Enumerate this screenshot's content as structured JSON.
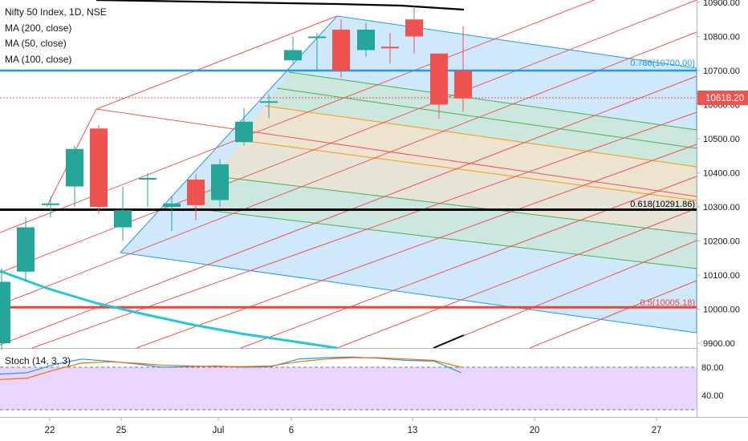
{
  "legend": {
    "symbol": "Nifty 50 Index, 1D, NSE",
    "ma200": "MA (200, close)",
    "ma50": "MA (50, close)",
    "ma100": "MA (100, close)"
  },
  "stoch": {
    "label": "Stoch (14, 3, 3)",
    "levels": [
      "80.00",
      "40.00"
    ],
    "k": [
      70,
      72,
      84,
      92,
      89,
      85,
      80,
      81,
      82,
      80,
      81,
      92,
      94,
      95,
      93,
      90,
      89,
      72
    ],
    "d": [
      62,
      64,
      76,
      86,
      88,
      86,
      83,
      82,
      81,
      81,
      82,
      88,
      92,
      94,
      94,
      92,
      90,
      80
    ],
    "colors": {
      "k": "#2196f3",
      "d": "#ff6d00",
      "band": "#e1c8ff"
    }
  },
  "price_axis": {
    "ticks": [
      "10900.00",
      "10800.00",
      "10700.00",
      "10600.00",
      "10500.00",
      "10400.00",
      "10300.00",
      "10200.00",
      "10100.00",
      "10000.00",
      "9900.00"
    ],
    "last_price": "10618.20",
    "last_price_color": "#ef5350"
  },
  "time_axis": {
    "ticks": [
      "22",
      "25",
      "Jul",
      "6",
      "13",
      "20",
      "27"
    ]
  },
  "fib_labels": {
    "f786": "0.786(10700.00)",
    "f618": "0.618(10291.86)",
    "f05": "0.5(10005.18)"
  },
  "chart_data": {
    "type": "candlestick",
    "symbol": "Nifty 50 Index",
    "interval": "1D",
    "exchange": "NSE",
    "y_range": [
      9880,
      10930
    ],
    "candles": [
      {
        "date": "Jun 18",
        "open": 9900,
        "high": 10120,
        "low": 9880,
        "close": 10080
      },
      {
        "date": "Jun 19",
        "open": 10110,
        "high": 10270,
        "low": 10080,
        "close": 10240
      },
      {
        "date": "Jun 22",
        "open": 10310,
        "high": 10330,
        "low": 10270,
        "close": 10310
      },
      {
        "date": "Jun 23",
        "open": 10360,
        "high": 10480,
        "low": 10300,
        "close": 10470
      },
      {
        "date": "Jun 24",
        "open": 10530,
        "high": 10540,
        "low": 10280,
        "close": 10300
      },
      {
        "date": "Jun 25",
        "open": 10240,
        "high": 10360,
        "low": 10200,
        "close": 10290
      },
      {
        "date": "Jun 26",
        "open": 10380,
        "high": 10400,
        "low": 10300,
        "close": 10385
      },
      {
        "date": "Jun 29",
        "open": 10300,
        "high": 10330,
        "low": 10230,
        "close": 10310
      },
      {
        "date": "Jun 30",
        "open": 10380,
        "high": 10395,
        "low": 10260,
        "close": 10305
      },
      {
        "date": "Jul 1",
        "open": 10320,
        "high": 10440,
        "low": 10300,
        "close": 10425
      },
      {
        "date": "Jul 2",
        "open": 10490,
        "high": 10590,
        "low": 10480,
        "close": 10550
      },
      {
        "date": "Jul 3",
        "open": 10610,
        "high": 10630,
        "low": 10560,
        "close": 10610
      },
      {
        "date": "Jul 6",
        "open": 10730,
        "high": 10800,
        "low": 10720,
        "close": 10760
      },
      {
        "date": "Jul 7",
        "open": 10800,
        "high": 10810,
        "low": 10700,
        "close": 10800
      },
      {
        "date": "Jul 8",
        "open": 10820,
        "high": 10850,
        "low": 10680,
        "close": 10700
      },
      {
        "date": "Jul 9",
        "open": 10760,
        "high": 10840,
        "low": 10740,
        "close": 10820
      },
      {
        "date": "Jul 10",
        "open": 10770,
        "high": 10810,
        "low": 10720,
        "close": 10768
      },
      {
        "date": "Jul 13",
        "open": 10850,
        "high": 10890,
        "low": 10750,
        "close": 10800
      },
      {
        "date": "Jul 14",
        "open": 10750,
        "high": 10750,
        "low": 10560,
        "close": 10600
      },
      {
        "date": "Jul 15",
        "open": 10700,
        "high": 10830,
        "low": 10580,
        "close": 10618.2
      }
    ],
    "horizontal_levels": [
      {
        "label": "0.786(10700.00)",
        "value": 10700,
        "color": "#2196f3"
      },
      {
        "label": "0.618(10291.86)",
        "value": 10291.86,
        "color": "#000000"
      },
      {
        "label": "0.5(10005.18)",
        "value": 10005.18,
        "color": "#f44336"
      }
    ],
    "last_price": 10618.2,
    "grid": true
  }
}
